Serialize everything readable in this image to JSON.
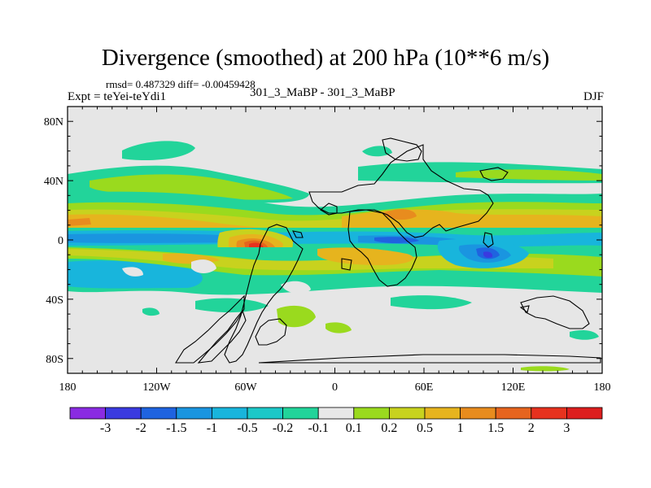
{
  "chart_data": {
    "type": "heatmap",
    "title": "Divergence (smoothed) at 200 hPa (10**6 m/s)",
    "stats_text": "rmsd= 0.487329  diff= -0.00459428",
    "left_label": "Expt = teYei-teYdi1",
    "center_label": "301_3_MaBP - 301_3_MaBP",
    "right_label": "DJF",
    "lon_range": [
      -180,
      180
    ],
    "lat_range": [
      -90,
      90
    ],
    "x_ticks": [
      {
        "value": -180,
        "label": "180"
      },
      {
        "value": -120,
        "label": "120W"
      },
      {
        "value": -60,
        "label": "60W"
      },
      {
        "value": 0,
        "label": "0"
      },
      {
        "value": 60,
        "label": "60E"
      },
      {
        "value": 120,
        "label": "120E"
      },
      {
        "value": 180,
        "label": "180"
      }
    ],
    "y_ticks": [
      {
        "value": 80,
        "label": "80N"
      },
      {
        "value": 40,
        "label": "40N"
      },
      {
        "value": 0,
        "label": "0"
      },
      {
        "value": -40,
        "label": "40S"
      },
      {
        "value": -80,
        "label": "80S"
      }
    ],
    "colorbar": {
      "levels": [
        "-3",
        "-2",
        "-1.5",
        "-1",
        "-0.5",
        "-0.2",
        "-0.1",
        "0.1",
        "0.2",
        "0.5",
        "1",
        "1.5",
        "2",
        "3"
      ],
      "colors": [
        "#8a2be2",
        "#3a3ae0",
        "#1f63e0",
        "#1a95e0",
        "#18b5dc",
        "#1cc8c8",
        "#22d49a",
        "#e8e8e8",
        "#9ada1e",
        "#c8d21e",
        "#e6b41e",
        "#e88c1e",
        "#e6641e",
        "#e6321e",
        "#dc1e1e"
      ]
    },
    "features": [
      {
        "name": "tropical convergence band",
        "lon": [
          -180,
          180
        ],
        "lat": [
          -6,
          2
        ],
        "sign": "negative",
        "peak": -1.5
      },
      {
        "name": "maritime continent minimum",
        "lon": 105,
        "lat": -12,
        "sign": "negative",
        "peak": -2
      },
      {
        "name": "south america maximum",
        "lon": -50,
        "lat": -3,
        "sign": "positive",
        "peak": 3
      },
      {
        "name": "southern subtropical band",
        "lon": [
          -180,
          180
        ],
        "lat": [
          -25,
          -8
        ],
        "sign": "mixed",
        "peak": 1.5
      },
      {
        "name": "northern subtropical band",
        "lon": [
          -180,
          180
        ],
        "lat": [
          8,
          32
        ],
        "sign": "positive",
        "peak": 1.5
      },
      {
        "name": "north america band",
        "lon": [
          -160,
          -60
        ],
        "lat": [
          25,
          40
        ],
        "sign": "positive",
        "peak": 0.5
      }
    ]
  }
}
